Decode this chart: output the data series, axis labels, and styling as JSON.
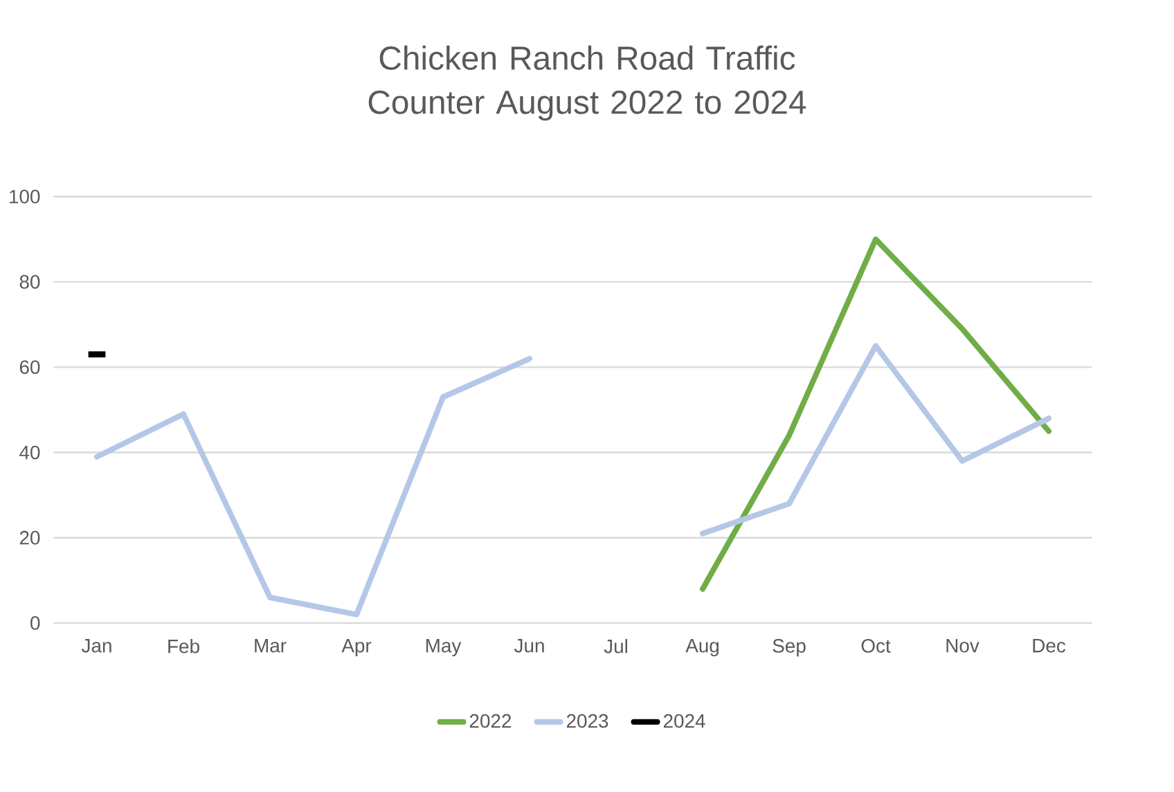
{
  "chart_data": {
    "type": "line",
    "title": "Chicken Ranch Road Traffic Counter August 2022 to 2024",
    "categories": [
      "Jan",
      "Feb",
      "Mar",
      "Apr",
      "May",
      "Jun",
      "Jul",
      "Aug",
      "Sep",
      "Oct",
      "Nov",
      "Dec"
    ],
    "series": [
      {
        "name": "2022",
        "color": "#70ad47",
        "values": [
          null,
          null,
          null,
          null,
          null,
          null,
          null,
          8,
          44,
          90,
          69,
          45
        ]
      },
      {
        "name": "2023",
        "color": "#b4c7e7",
        "values": [
          39,
          49,
          6,
          2,
          53,
          62,
          null,
          21,
          28,
          65,
          38,
          48
        ]
      },
      {
        "name": "2024",
        "color": "#000000",
        "marker": "square",
        "values": [
          63,
          null,
          null,
          null,
          null,
          null,
          null,
          null,
          null,
          null,
          null,
          null
        ]
      }
    ],
    "ylim": [
      0,
      100
    ],
    "yticks": [
      0,
      20,
      40,
      60,
      80,
      100
    ],
    "grid": "y",
    "legend": "bottom"
  }
}
